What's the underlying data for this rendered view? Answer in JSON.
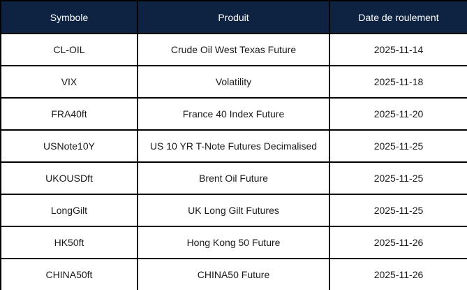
{
  "colors": {
    "header_bg": "#0e2342",
    "header_text": "#ffffff",
    "border": "#000000",
    "cell_bg": "#ffffff",
    "cell_text": "#1a1a1a"
  },
  "table": {
    "columns": [
      {
        "label": "Symbole"
      },
      {
        "label": "Produit"
      },
      {
        "label": "Date de roulement"
      }
    ],
    "rows": [
      {
        "symbol": "CL-OIL",
        "product": "Crude Oil West Texas Future",
        "date": "2025-11-14"
      },
      {
        "symbol": "VIX",
        "product": "Volatility",
        "date": "2025-11-18"
      },
      {
        "symbol": "FRA40ft",
        "product": "France 40 Index Future",
        "date": "2025-11-20"
      },
      {
        "symbol": "USNote10Y",
        "product": "US 10 YR T-Note Futures Decimalised",
        "date": "2025-11-25"
      },
      {
        "symbol": "UKOUSDft",
        "product": "Brent Oil Future",
        "date": "2025-11-25"
      },
      {
        "symbol": "LongGilt",
        "product": "UK Long Gilt Futures",
        "date": "2025-11-25"
      },
      {
        "symbol": "HK50ft",
        "product": "Hong Kong 50 Future",
        "date": "2025-11-26"
      },
      {
        "symbol": "CHINA50ft",
        "product": "CHINA50 Future",
        "date": "2025-11-26"
      }
    ]
  }
}
